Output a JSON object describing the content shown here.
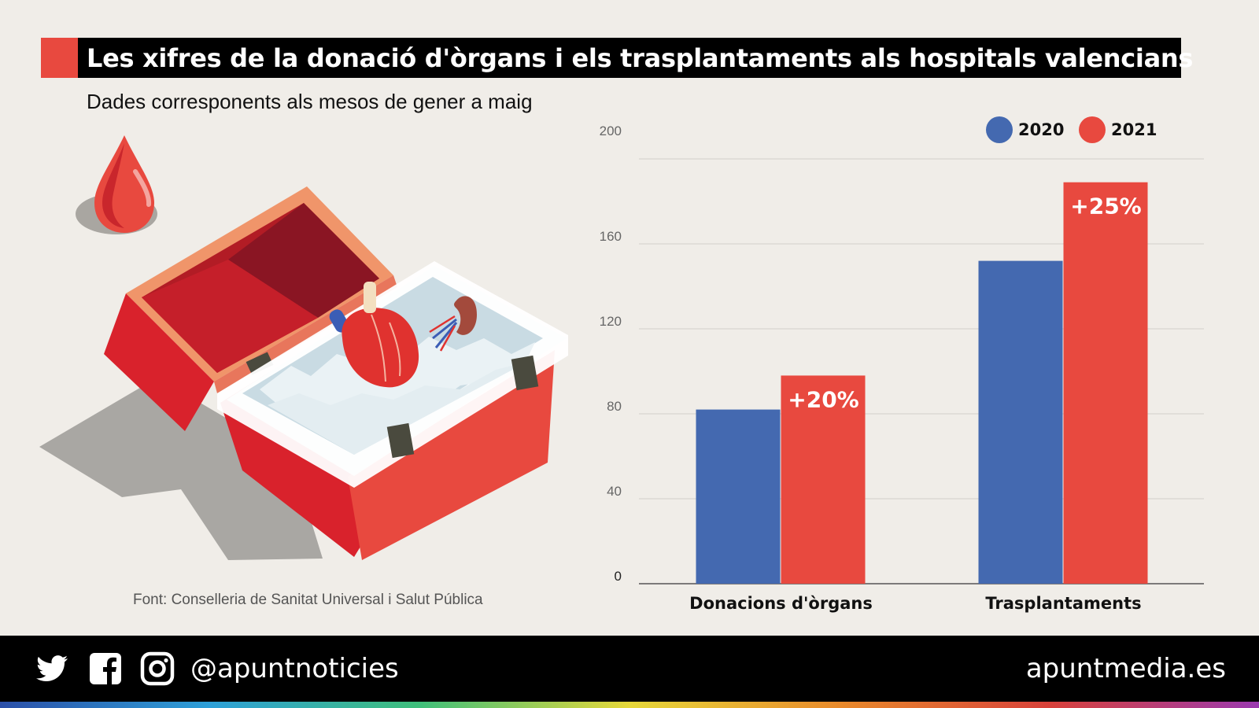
{
  "title": "Les xifres de la donació d'òrgans i els trasplantaments als hospitals valencians",
  "subtitle": "Dades corresponents als mesos de gener a maig",
  "source": "Font: Conselleria de Sanitat Universal i Salut Pública",
  "footer": {
    "handle": "@apuntnoticies",
    "site": "apuntmedia.es",
    "icons": [
      "twitter-icon",
      "facebook-icon",
      "instagram-icon"
    ]
  },
  "illustration": {
    "icons": [
      "blood-drop-icon",
      "organ-cooler-box-icon",
      "heart-icon",
      "kidney-icon"
    ]
  },
  "colors": {
    "accent": "#e8493f",
    "series_2020": "#4469b0",
    "series_2021": "#e8493f",
    "box_red": "#d9222c"
  },
  "chart_data": {
    "type": "bar",
    "categories": [
      "Donacions d'òrgans",
      "Trasplantaments"
    ],
    "series": [
      {
        "name": "2020",
        "values": [
          82,
          152
        ],
        "color": "#4469b0"
      },
      {
        "name": "2021",
        "values": [
          98,
          189
        ],
        "color": "#e8493f",
        "labels": [
          "+20%",
          "+25%"
        ]
      }
    ],
    "yticks": [
      0,
      40,
      80,
      120,
      160,
      200
    ],
    "ylim": [
      0,
      200
    ],
    "grid": true,
    "legend": "top-right"
  }
}
